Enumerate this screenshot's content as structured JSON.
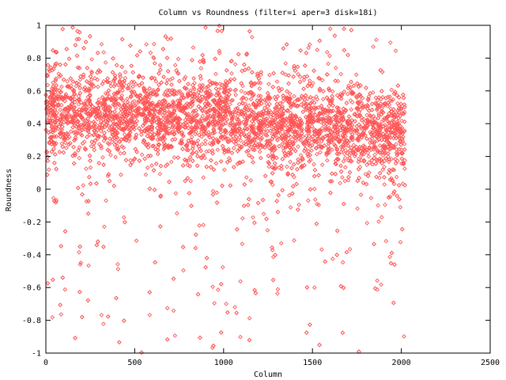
{
  "chart_data": {
    "type": "scatter",
    "title": "Column vs Roundness (filter=i aper=3 disk=18i)",
    "xlabel": "Column",
    "ylabel": "Roundness",
    "xlim": [
      0,
      2500
    ],
    "ylim": [
      -1,
      1
    ],
    "xticks": [
      "0",
      "500",
      "1000",
      "1500",
      "2000",
      "2500"
    ],
    "yticks": [
      "1",
      "0.8",
      "0.6",
      "0.4",
      "0.2",
      "0",
      "-0.2",
      "-0.4",
      "-0.6",
      "-0.8",
      "-1"
    ],
    "grid": false,
    "legend": "none",
    "marker": "diamond",
    "marker_color": "#ff5555",
    "series": [
      {
        "x_range": [
          0,
          2020
        ],
        "density": "dense core around y 0.25 to 0.6, sparse tails to -1 and 1",
        "trend": [
          {
            "x": 0,
            "y_center": 0.47
          },
          {
            "x": 500,
            "y_center": 0.46
          },
          {
            "x": 1000,
            "y_center": 0.42
          },
          {
            "x": 1500,
            "y_center": 0.38
          },
          {
            "x": 2020,
            "y_center": 0.34
          }
        ]
      }
    ]
  }
}
